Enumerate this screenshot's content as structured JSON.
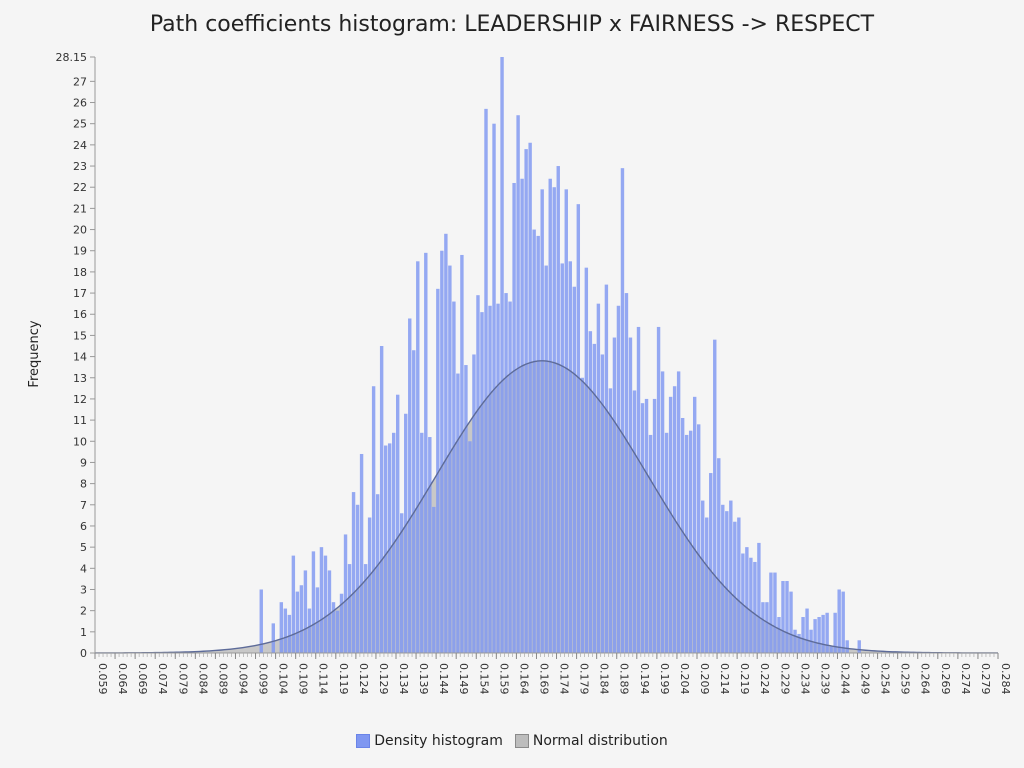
{
  "chart_data": {
    "type": "bar",
    "title": "Path coefficients histogram: LEADERSHIP x FAIRNESS -> RESPECT",
    "ylabel": "Frequency",
    "xlabel": "",
    "ylim": [
      0,
      28.15
    ],
    "xlim": [
      0.059,
      0.284
    ],
    "y_ticks": [
      "0",
      "1",
      "2",
      "3",
      "4",
      "5",
      "6",
      "7",
      "8",
      "9",
      "10",
      "11",
      "12",
      "13",
      "14",
      "15",
      "16",
      "17",
      "18",
      "19",
      "20",
      "21",
      "22",
      "23",
      "24",
      "25",
      "26",
      "27",
      "28.15"
    ],
    "x_ticks": [
      "0.059",
      "0.064",
      "0.069",
      "0.074",
      "0.079",
      "0.084",
      "0.089",
      "0.094",
      "0.099",
      "0.104",
      "0.109",
      "0.114",
      "0.119",
      "0.124",
      "0.129",
      "0.134",
      "0.139",
      "0.144",
      "0.149",
      "0.154",
      "0.159",
      "0.164",
      "0.169",
      "0.174",
      "0.179",
      "0.184",
      "0.189",
      "0.194",
      "0.199",
      "0.204",
      "0.209",
      "0.214",
      "0.219",
      "0.224",
      "0.229",
      "0.234",
      "0.239",
      "0.244",
      "0.249",
      "0.254",
      "0.259",
      "0.264",
      "0.269",
      "0.274",
      "0.279",
      "0.284"
    ],
    "grid": false,
    "legend_position": "bottom",
    "series": [
      {
        "name": "Density histogram",
        "color": "#7f97f1",
        "bin_start": 0.1,
        "bin_width": 0.001,
        "values": [
          3.0,
          0,
          0,
          1.4,
          0,
          2.4,
          2.1,
          1.8,
          4.6,
          2.9,
          3.2,
          3.9,
          2.1,
          4.8,
          3.1,
          5.0,
          4.6,
          3.9,
          2.4,
          2.0,
          2.8,
          5.6,
          4.2,
          7.6,
          7.0,
          9.4,
          4.2,
          6.4,
          12.6,
          7.5,
          14.5,
          9.8,
          9.9,
          10.4,
          12.2,
          6.6,
          11.3,
          15.8,
          14.3,
          18.5,
          10.4,
          18.9,
          10.2,
          6.9,
          17.2,
          19.0,
          19.8,
          18.3,
          16.6,
          13.2,
          18.8,
          13.6,
          10.0,
          14.1,
          16.9,
          16.1,
          25.7,
          16.4,
          25.0,
          16.5,
          28.15,
          17.0,
          16.6,
          22.2,
          25.4,
          22.4,
          23.8,
          24.1,
          20.0,
          19.7,
          21.9,
          18.3,
          22.4,
          22.0,
          23.0,
          18.4,
          21.9,
          18.5,
          17.3,
          21.2,
          13.0,
          18.2,
          15.2,
          14.6,
          16.5,
          14.1,
          17.4,
          12.5,
          14.9,
          16.4,
          22.9,
          17.0,
          14.9,
          12.4,
          15.4,
          11.8,
          12.0,
          10.3,
          12.0,
          15.4,
          13.3,
          10.4,
          12.1,
          12.6,
          13.3,
          11.1,
          10.3,
          10.5,
          12.1,
          10.8,
          7.2,
          6.4,
          8.5,
          14.8,
          9.2,
          7.0,
          6.7,
          7.2,
          6.2,
          6.4,
          4.7,
          5.0,
          4.5,
          4.3,
          5.2,
          2.4,
          2.4,
          3.8,
          3.8,
          1.7,
          3.4,
          3.4,
          2.9,
          1.1,
          0.9,
          1.7,
          2.1,
          1.1,
          1.6,
          1.7,
          1.8,
          1.9,
          0.3,
          1.9,
          3.0,
          2.9,
          0.6,
          0,
          0,
          0.6
        ]
      },
      {
        "name": "Normal distribution",
        "color": "#888888",
        "mean": 0.1704,
        "sd": 0.0264,
        "peak": 13.8
      }
    ]
  }
}
